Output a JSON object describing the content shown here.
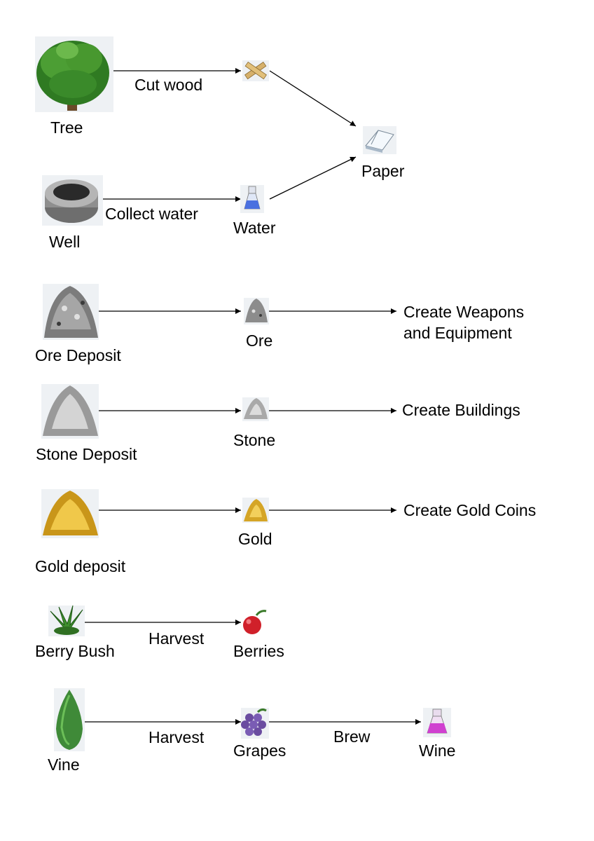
{
  "colors": {
    "tree_leaf": "#3f8f2e",
    "tree_dark": "#1f5a17",
    "trunk": "#6b4a2a",
    "well_stone": "#9a9a9a",
    "well_dark": "#444444",
    "ore": "#8c8c8c",
    "stone": "#c4c4c4",
    "gold": "#e5b52d",
    "berry": "#d0202a",
    "bush": "#4f9b3a",
    "grape": "#6a4ca0",
    "water": "#4a70e0",
    "wine": "#d040d0",
    "paper": "#dde6f0",
    "wood": "#d6b06a",
    "line": "#000000"
  },
  "sources": {
    "tree": "Tree",
    "well": "Well",
    "ore_deposit": "Ore Deposit",
    "stone_deposit": "Stone Deposit",
    "gold_deposit": "Gold deposit",
    "berry_bush": "Berry Bush",
    "vine": "Vine"
  },
  "products": {
    "water": "Water",
    "paper": "Paper",
    "ore": "Ore",
    "stone": "Stone",
    "gold": "Gold",
    "berries": "Berries",
    "grapes": "Grapes",
    "wine": "Wine"
  },
  "actions": {
    "cut_wood": "Cut wood",
    "collect_water": "Collect  water",
    "harvest_berries": "Harvest",
    "harvest_grapes": "Harvest",
    "brew": "Brew"
  },
  "outcomes": {
    "weapons": "Create Weapons\nand Equipment",
    "buildings": "Create Buildings",
    "gold_coins": "Create Gold Coins"
  }
}
